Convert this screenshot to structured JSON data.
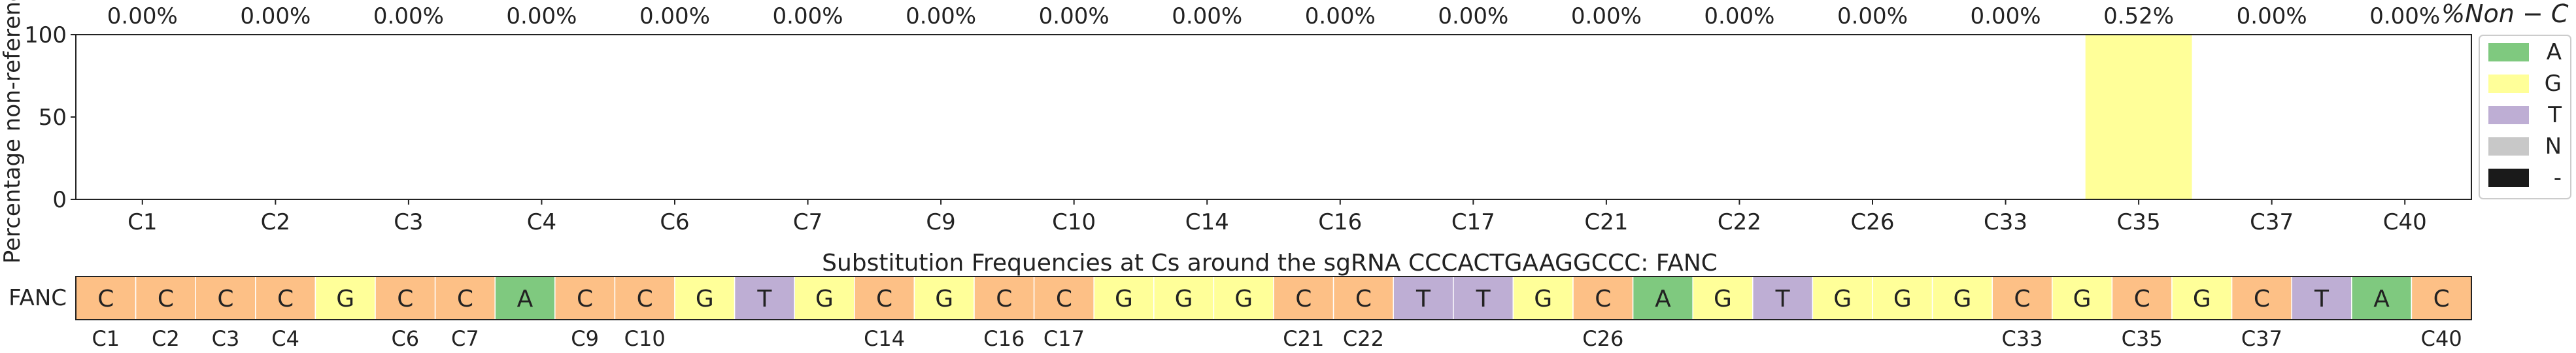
{
  "chart_data": [
    {
      "type": "bar",
      "title": "",
      "ylabel": "Percentage non-reference",
      "ylim": [
        0,
        100
      ],
      "yticks": [
        0,
        50,
        100
      ],
      "categories": [
        "C1",
        "C2",
        "C3",
        "C4",
        "C6",
        "C7",
        "C9",
        "C10",
        "C14",
        "C16",
        "C17",
        "C21",
        "C22",
        "C26",
        "C33",
        "C35",
        "C37",
        "C40"
      ],
      "top_labels": [
        "0.00%",
        "0.00%",
        "0.00%",
        "0.00%",
        "0.00%",
        "0.00%",
        "0.00%",
        "0.00%",
        "0.00%",
        "0.00%",
        "0.00%",
        "0.00%",
        "0.00%",
        "0.00%",
        "0.00%",
        "0.52%",
        "0.00%",
        "0.00%"
      ],
      "top_axis_label": "%Non − C",
      "series": [
        {
          "name": "A",
          "color": "#7fc97f",
          "values": [
            0,
            0,
            0,
            0,
            0,
            0,
            0,
            0,
            0,
            0,
            0,
            0,
            0,
            0,
            0,
            0,
            0,
            0
          ]
        },
        {
          "name": "G",
          "color": "#ffff99",
          "values": [
            0,
            0,
            0,
            0,
            0,
            0,
            0,
            0,
            0,
            0,
            0,
            0,
            0,
            0,
            0,
            100,
            0,
            0
          ]
        },
        {
          "name": "T",
          "color": "#beaed4",
          "values": [
            0,
            0,
            0,
            0,
            0,
            0,
            0,
            0,
            0,
            0,
            0,
            0,
            0,
            0,
            0,
            0,
            0,
            0
          ]
        },
        {
          "name": "N",
          "color": "#c8c8c8",
          "values": [
            0,
            0,
            0,
            0,
            0,
            0,
            0,
            0,
            0,
            0,
            0,
            0,
            0,
            0,
            0,
            0,
            0,
            0
          ]
        },
        {
          "name": "-",
          "color": "#1a1a1a",
          "values": [
            0,
            0,
            0,
            0,
            0,
            0,
            0,
            0,
            0,
            0,
            0,
            0,
            0,
            0,
            0,
            0,
            0,
            0
          ]
        }
      ],
      "legend_position": "right"
    },
    {
      "type": "table",
      "title": "Substitution Frequencies at Cs around the sgRNA CCCACTGAAGGCCC: FANC",
      "row_label": "FANC",
      "sequence": [
        "C",
        "C",
        "C",
        "C",
        "G",
        "C",
        "C",
        "A",
        "C",
        "C",
        "G",
        "T",
        "G",
        "C",
        "G",
        "C",
        "C",
        "G",
        "G",
        "G",
        "C",
        "C",
        "T",
        "T",
        "G",
        "C",
        "A",
        "G",
        "T",
        "G",
        "G",
        "G",
        "C",
        "G",
        "C",
        "G",
        "C",
        "T",
        "A",
        "C"
      ],
      "position_labels": [
        "C1",
        "C2",
        "C3",
        "C4",
        "",
        "C6",
        "C7",
        "",
        "C9",
        "C10",
        "",
        "",
        "",
        "C14",
        "",
        "C16",
        "C17",
        "",
        "",
        "",
        "C21",
        "C22",
        "",
        "",
        "",
        "C26",
        "",
        "",
        "",
        "",
        "",
        "",
        "C33",
        "",
        "C35",
        "",
        "C37",
        "",
        "",
        "C40"
      ],
      "base_colors": {
        "A": "#7fc97f",
        "C": "#fdc086",
        "G": "#ffff99",
        "T": "#beaed4",
        "N": "#c8c8c8",
        "-": "#1a1a1a"
      }
    }
  ]
}
